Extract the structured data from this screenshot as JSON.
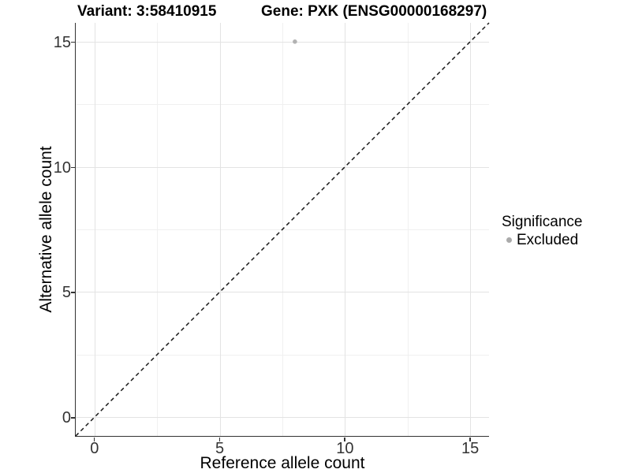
{
  "title": {
    "variant": "Variant: 3:58410915",
    "gene": "Gene: PXK (ENSG00000168297)"
  },
  "axes": {
    "x": {
      "title": "Reference allele count"
    },
    "y": {
      "title": "Alternative allele count"
    }
  },
  "legend": {
    "title": "Significance",
    "items": [
      {
        "label": "Excluded",
        "color": "#aaaaaa"
      }
    ]
  },
  "colors": {
    "point": "#b2b2b2",
    "grid_major": "#e3e3e3",
    "grid_minor": "#f0f0f0",
    "axis_line": "#333333",
    "tick_text": "#333333",
    "identity_line": "#1a1a1a"
  },
  "chart_data": {
    "type": "scatter",
    "title": "Variant: 3:58410915 | Gene: PXK (ENSG00000168297)",
    "xlabel": "Reference allele count",
    "ylabel": "Alternative allele count",
    "xlim": [
      -0.75,
      15.75
    ],
    "ylim": [
      -0.75,
      15.75
    ],
    "x_major_ticks": [
      0,
      5,
      10,
      15
    ],
    "y_major_ticks": [
      0,
      5,
      10,
      15
    ],
    "x_minor_ticks": [
      2.5,
      7.5,
      12.5
    ],
    "y_minor_ticks": [
      2.5,
      7.5,
      12.5
    ],
    "grid": true,
    "legend_position": "right-center",
    "series": [
      {
        "name": "Excluded",
        "color": "#b2b2b2",
        "marker": "circle",
        "points": [
          {
            "x": 8,
            "y": 15
          }
        ]
      }
    ],
    "reference_line": {
      "equation": "y = x",
      "style": "dashed",
      "color": "#000000",
      "from": [
        -0.75,
        -0.75
      ],
      "to": [
        15.75,
        15.75
      ]
    }
  }
}
